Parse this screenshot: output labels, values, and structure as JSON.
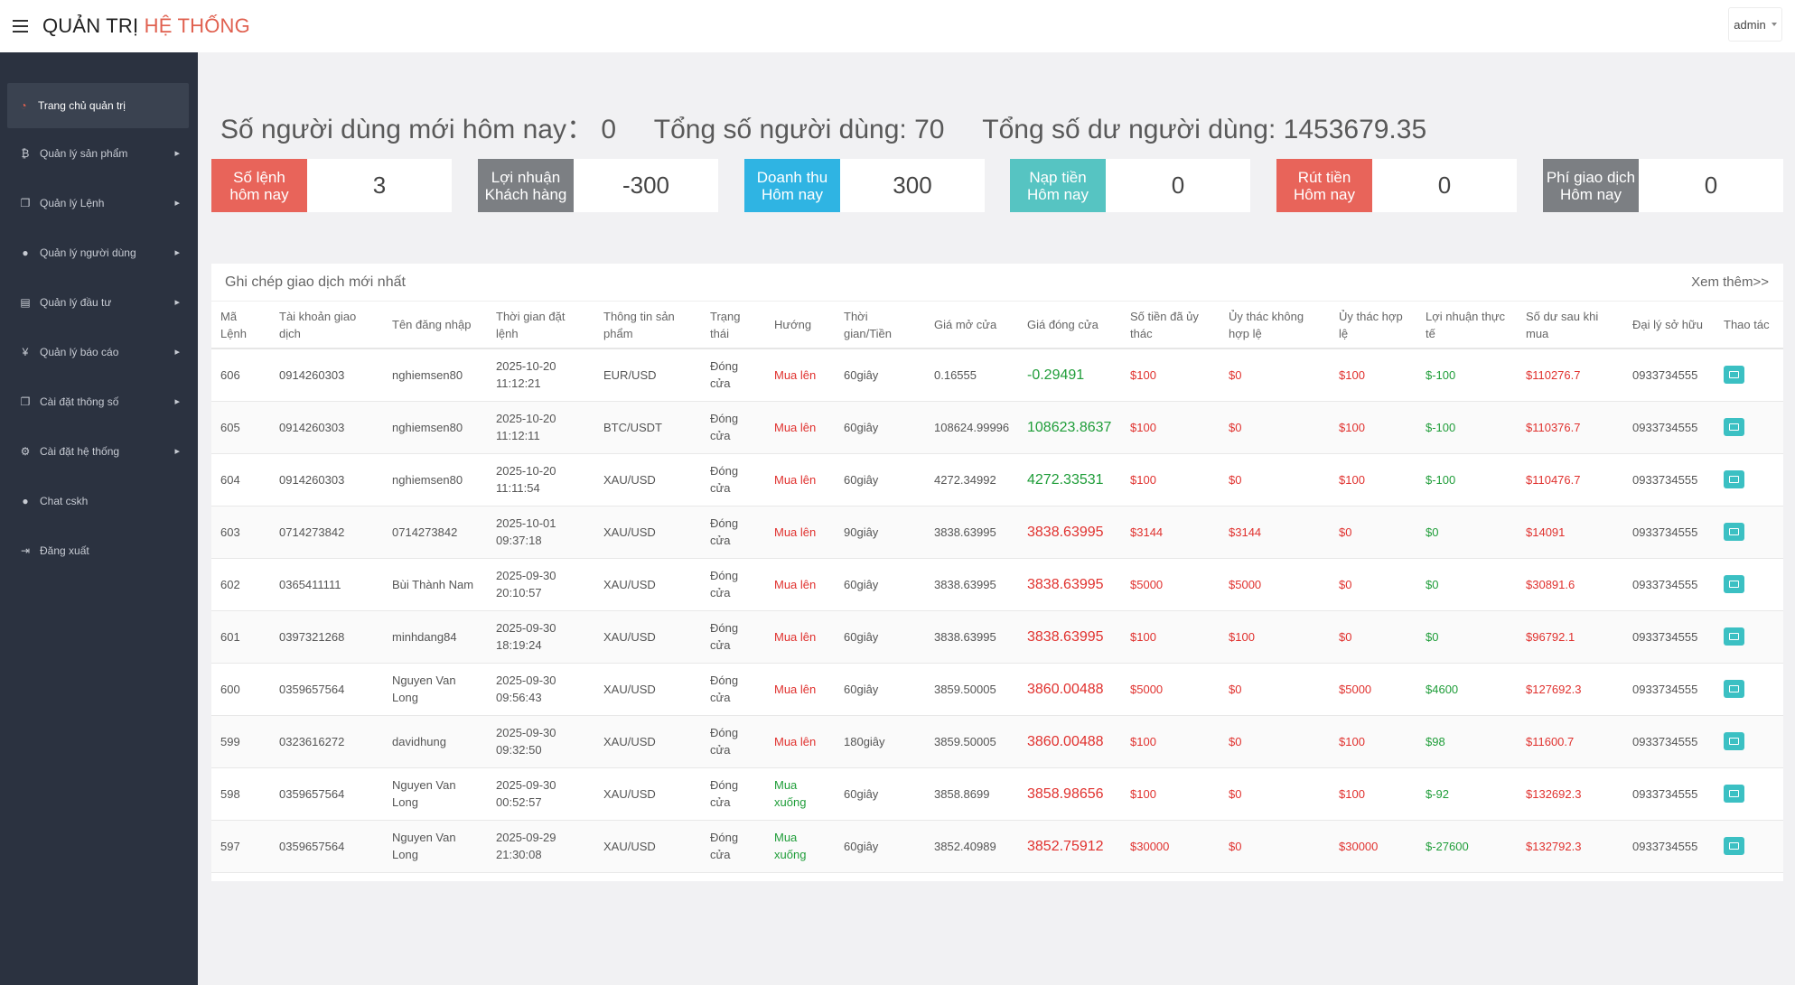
{
  "header": {
    "brand_prefix": "QUẢN TRỊ",
    "brand_accent": "HỆ THỐNG",
    "user_label": "admin"
  },
  "sidebar": {
    "items": [
      {
        "label": "Trang chủ quản trị",
        "icon": "dashboard-icon",
        "active": true
      },
      {
        "label": "Quản lý sản phẩm",
        "icon": "bitcoin-icon"
      },
      {
        "label": "Quản lý Lệnh",
        "icon": "copy-icon"
      },
      {
        "label": "Quản lý người dùng",
        "icon": "user-icon"
      },
      {
        "label": "Quản lý đầu tư",
        "icon": "money-icon"
      },
      {
        "label": "Quản lý báo cáo",
        "icon": "yen-icon"
      },
      {
        "label": "Cài đặt thông số",
        "icon": "copy-icon"
      },
      {
        "label": "Cài đặt hệ thống",
        "icon": "gears-icon"
      },
      {
        "label": "Chat cskh",
        "icon": "chat-icon"
      },
      {
        "label": "Đăng xuất",
        "icon": "logout-icon"
      }
    ]
  },
  "summary": {
    "new_users_label": "Số người dùng mới hôm nay：",
    "new_users_value": "0",
    "total_users_label": "Tổng số người dùng:",
    "total_users_value": "70",
    "total_balance_label": "Tổng số dư người dùng:",
    "total_balance_value": "1453679.35"
  },
  "cards": [
    {
      "line1": "Số lệnh",
      "line2": "hôm nay",
      "value": "3",
      "color": "#e8645a"
    },
    {
      "line1": "Lợi nhuận",
      "line2": "Khách hàng",
      "value": "-300",
      "color": "#7c7f83"
    },
    {
      "line1": "Doanh thu",
      "line2": "Hôm nay",
      "value": "300",
      "color": "#2fb4e3"
    },
    {
      "line1": "Nạp tiền",
      "line2": "Hôm nay",
      "value": "0",
      "color": "#56c4c2"
    },
    {
      "line1": "Rút tiền",
      "line2": "Hôm nay",
      "value": "0",
      "color": "#e8645a"
    },
    {
      "line1": "Phí giao dịch",
      "line2": "Hôm nay",
      "value": "0",
      "color": "#7c7f83"
    }
  ],
  "panel": {
    "title": "Ghi chép giao dịch mới nhất",
    "more": "Xem thêm>>"
  },
  "table": {
    "headers": [
      "Mã Lệnh",
      "Tài khoản giao dịch",
      "Tên đăng nhập",
      "Thời gian đặt lệnh",
      "Thông tin sản phẩm",
      "Trạng thái",
      "Hướng",
      "Thời gian/Tiền",
      "Giá mở cửa",
      "Giá đóng cửa",
      "Số tiền đã ủy thác",
      "Ủy thác không hợp lệ",
      "Ủy thác hợp lệ",
      "Lợi nhuận thực tế",
      "Số dư sau khi mua",
      "Đại lý sở hữu",
      "Thao tác"
    ],
    "rows": [
      [
        "606",
        "0914260303",
        "nghiemsen80",
        "2025-10-20 11:12:21",
        "EUR/USD",
        "Đóng cửa",
        "Mua lên",
        "60giây",
        "0.16555",
        "-0.29491",
        "$100",
        "$0",
        "$100",
        "$-100",
        "$110276.7",
        "0933734555"
      ],
      [
        "605",
        "0914260303",
        "nghiemsen80",
        "2025-10-20 11:12:11",
        "BTC/USDT",
        "Đóng cửa",
        "Mua lên",
        "60giây",
        "108624.99996",
        "108623.8637",
        "$100",
        "$0",
        "$100",
        "$-100",
        "$110376.7",
        "0933734555"
      ],
      [
        "604",
        "0914260303",
        "nghiemsen80",
        "2025-10-20 11:11:54",
        "XAU/USD",
        "Đóng cửa",
        "Mua lên",
        "60giây",
        "4272.34992",
        "4272.33531",
        "$100",
        "$0",
        "$100",
        "$-100",
        "$110476.7",
        "0933734555"
      ],
      [
        "603",
        "0714273842",
        "0714273842",
        "2025-10-01 09:37:18",
        "XAU/USD",
        "Đóng cửa",
        "Mua lên",
        "90giây",
        "3838.63995",
        "3838.63995",
        "$3144",
        "$3144",
        "$0",
        "$0",
        "$14091",
        "0933734555"
      ],
      [
        "602",
        "0365411111",
        "Bùi Thành Nam",
        "2025-09-30 20:10:57",
        "XAU/USD",
        "Đóng cửa",
        "Mua lên",
        "60giây",
        "3838.63995",
        "3838.63995",
        "$5000",
        "$5000",
        "$0",
        "$0",
        "$30891.6",
        "0933734555"
      ],
      [
        "601",
        "0397321268",
        "minhdang84",
        "2025-09-30 18:19:24",
        "XAU/USD",
        "Đóng cửa",
        "Mua lên",
        "60giây",
        "3838.63995",
        "3838.63995",
        "$100",
        "$100",
        "$0",
        "$0",
        "$96792.1",
        "0933734555"
      ],
      [
        "600",
        "0359657564",
        "Nguyen Van Long",
        "2025-09-30 09:56:43",
        "XAU/USD",
        "Đóng cửa",
        "Mua lên",
        "60giây",
        "3859.50005",
        "3860.00488",
        "$5000",
        "$0",
        "$5000",
        "$4600",
        "$127692.3",
        "0933734555"
      ],
      [
        "599",
        "0323616272",
        "davidhung",
        "2025-09-30 09:32:50",
        "XAU/USD",
        "Đóng cửa",
        "Mua lên",
        "180giây",
        "3859.50005",
        "3860.00488",
        "$100",
        "$0",
        "$100",
        "$98",
        "$11600.7",
        "0933734555"
      ],
      [
        "598",
        "0359657564",
        "Nguyen Van Long",
        "2025-09-30 00:52:57",
        "XAU/USD",
        "Đóng cửa",
        "Mua xuống",
        "60giây",
        "3858.8699",
        "3858.98656",
        "$100",
        "$0",
        "$100",
        "$-92",
        "$132692.3",
        "0933734555"
      ],
      [
        "597",
        "0359657564",
        "Nguyen Van Long",
        "2025-09-29 21:30:08",
        "XAU/USD",
        "Đóng cửa",
        "Mua xuống",
        "60giây",
        "3852.40989",
        "3852.75912",
        "$30000",
        "$0",
        "$30000",
        "$-27600",
        "$132792.3",
        "0933734555"
      ]
    ]
  }
}
